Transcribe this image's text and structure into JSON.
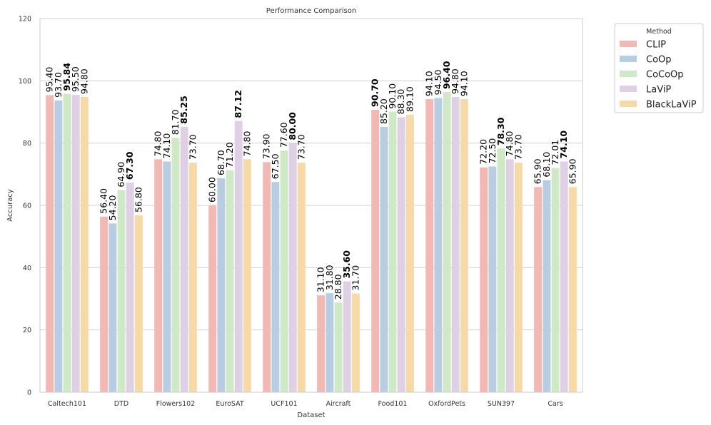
{
  "chart_data": {
    "type": "bar",
    "title": "Performance Comparison",
    "xlabel": "Dataset",
    "ylabel": "Accuracy",
    "ylim": [
      0,
      120
    ],
    "yticks": [
      0,
      20,
      40,
      60,
      80,
      100,
      120
    ],
    "grid": "horizontal",
    "legend_title": "Method",
    "legend_position": "outside-top-right",
    "categories": [
      "Caltech101",
      "DTD",
      "Flowers102",
      "EuroSAT",
      "UCF101",
      "Aircraft",
      "Food101",
      "OxfordPets",
      "SUN397",
      "Cars"
    ],
    "series": [
      {
        "name": "CLIP",
        "color": "#f2b8b4",
        "values": [
          95.4,
          56.4,
          74.8,
          60.0,
          73.9,
          31.1,
          90.7,
          94.1,
          72.2,
          65.9
        ],
        "labels": [
          "95.40",
          "56.40",
          "74.80",
          "60.00",
          "73.90",
          "31.10",
          "90.70",
          "94.10",
          "72.20",
          "65.90"
        ]
      },
      {
        "name": "CoOp",
        "color": "#b8cde2",
        "values": [
          93.7,
          54.2,
          74.1,
          68.7,
          67.5,
          31.8,
          85.2,
          94.5,
          72.5,
          68.1
        ],
        "labels": [
          "93.70",
          "54.20",
          "74.10",
          "68.70",
          "67.50",
          "31.80",
          "85.20",
          "94.50",
          "72.50",
          "68.10"
        ]
      },
      {
        "name": "CoCoOp",
        "color": "#cfe9c6",
        "values": [
          95.84,
          64.9,
          81.7,
          71.2,
          77.6,
          28.8,
          90.1,
          96.4,
          78.3,
          72.01
        ],
        "labels": [
          "95.84",
          "64.90",
          "81.70",
          "71.20",
          "77.60",
          "28.80",
          "90.10",
          "96.40",
          "78.30",
          "72.01"
        ]
      },
      {
        "name": "LaViP",
        "color": "#dfd0e6",
        "values": [
          95.5,
          67.3,
          85.25,
          87.12,
          80.0,
          35.6,
          88.3,
          94.8,
          74.8,
          74.1
        ],
        "labels": [
          "95.50",
          "67.30",
          "85.25",
          "87.12",
          "80.00",
          "35.60",
          "88.30",
          "94.80",
          "74.80",
          "74.10"
        ]
      },
      {
        "name": "BlackLaViP",
        "color": "#f7d9a8",
        "values": [
          94.8,
          56.8,
          73.7,
          74.8,
          73.7,
          31.7,
          89.1,
          94.1,
          73.7,
          65.9
        ],
        "labels": [
          "94.80",
          "56.80",
          "73.70",
          "74.80",
          "73.70",
          "31.70",
          "89.10",
          "94.10",
          "73.70",
          "65.90"
        ]
      }
    ],
    "best_per_category": [
      "CoCoOp",
      "LaViP",
      "LaViP",
      "LaViP",
      "LaViP",
      "LaViP",
      "CLIP",
      "CoCoOp",
      "CoCoOp",
      "LaViP"
    ]
  }
}
